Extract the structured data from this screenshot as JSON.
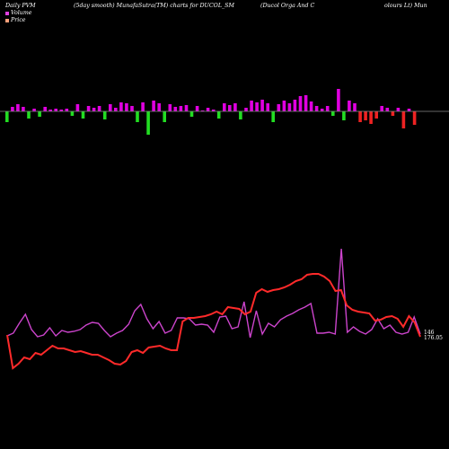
{
  "header": {
    "left": "Daily PVM",
    "mid": "(5day smooth) MunafaSutra(TM) charts for DUCOL_SM",
    "right": "(Ducol Orga And C",
    "right2": "olours Lt) Mun"
  },
  "legend": [
    {
      "label": "Volume",
      "color": "#e040e0"
    },
    {
      "label": "Price",
      "color": "#ffa07a"
    }
  ],
  "colors": {
    "background": "#000000",
    "volume_up": "#e000e0",
    "volume_down_green": "#22dd22",
    "volume_down_red": "#ee2222",
    "pvm_line": "#cc44cc",
    "price_line": "#ff2a2a",
    "baseline": "#888888"
  },
  "chart_data": {
    "type": "bar",
    "volume_bars": [
      -12,
      5,
      8,
      5,
      -8,
      3,
      -6,
      5,
      2,
      3,
      2,
      3,
      -5,
      8,
      -8,
      6,
      4,
      6,
      -9,
      8,
      4,
      10,
      9,
      6,
      -12,
      10,
      -26,
      12,
      9,
      -12,
      8,
      5,
      6,
      7,
      -6,
      6,
      1,
      4,
      2,
      -8,
      9,
      7,
      9,
      -9,
      4,
      12,
      10,
      13,
      9,
      -12,
      8,
      12,
      9,
      13,
      17,
      18,
      11,
      6,
      3,
      6,
      -5,
      25,
      -10,
      12,
      9,
      -12,
      -10,
      -14,
      -8,
      6,
      4,
      -5,
      4,
      -19,
      3,
      -15
    ],
    "price_labels": [
      "146",
      "176.05"
    ],
    "series": [
      {
        "name": "Volume",
        "values": [
          374,
          371,
          360,
          350,
          367,
          375,
          373,
          365,
          374,
          368,
          370,
          369,
          367,
          362,
          359,
          360,
          368,
          375,
          371,
          368,
          361,
          346,
          339,
          355,
          366,
          358,
          371,
          368,
          354,
          354,
          355,
          362,
          361,
          362,
          370,
          353,
          352,
          366,
          364,
          336,
          376,
          346,
          372,
          360,
          364,
          356,
          352,
          349,
          345,
          342,
          338,
          371,
          371,
          370,
          372,
          277,
          370,
          364,
          369,
          372,
          367,
          355,
          366,
          362,
          370,
          372,
          370,
          353,
          372
        ]
      },
      {
        "name": "Price",
        "values": [
          373,
          410,
          405,
          398,
          400,
          393,
          395,
          390,
          385,
          388,
          388,
          390,
          392,
          391,
          393,
          395,
          395,
          398,
          401,
          405,
          406,
          402,
          392,
          390,
          393,
          387,
          386,
          385,
          388,
          390,
          390,
          358,
          354,
          354,
          353,
          352,
          350,
          347,
          350,
          342,
          343,
          344,
          350,
          347,
          326,
          322,
          325,
          323,
          322,
          320,
          317,
          313,
          311,
          306,
          305,
          305,
          308,
          313,
          324,
          323,
          340,
          345,
          347,
          348,
          349,
          357,
          356,
          353,
          352,
          355,
          364,
          352,
          359,
          375
        ]
      }
    ]
  }
}
